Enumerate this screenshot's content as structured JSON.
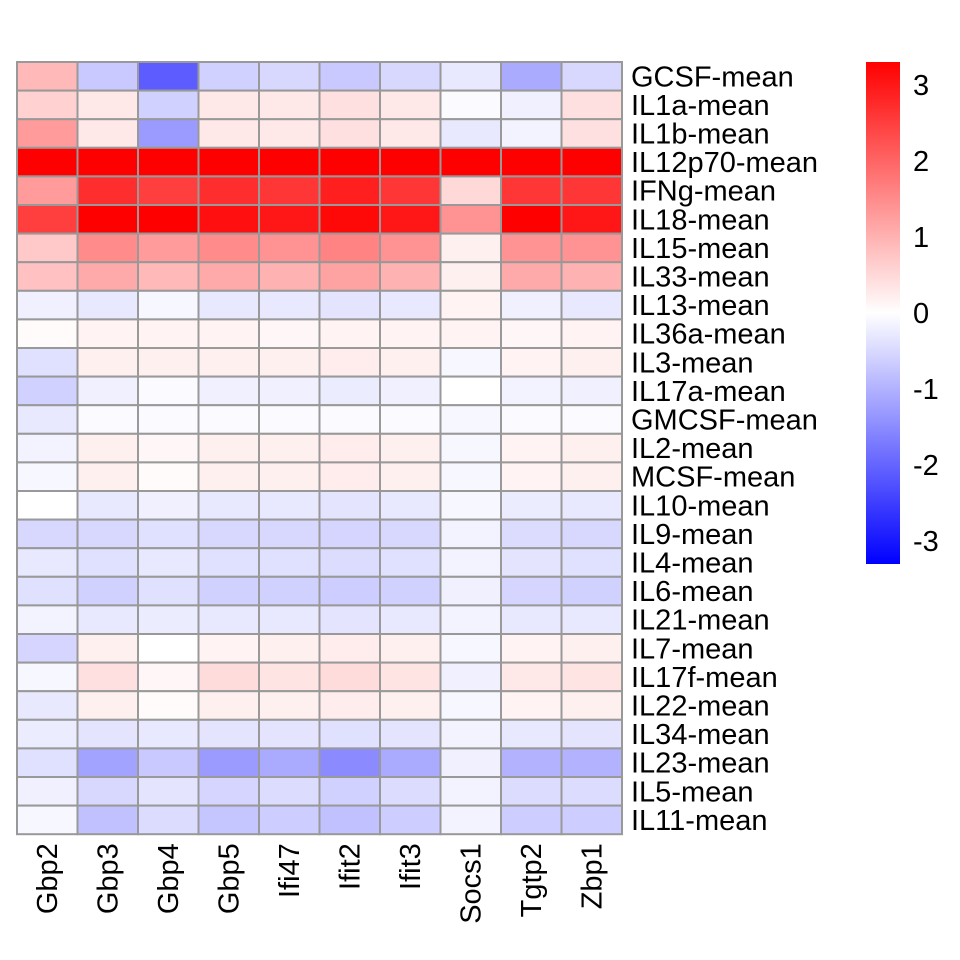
{
  "chart_data": {
    "type": "heatmap",
    "columns": [
      "Gbp2",
      "Gbp3",
      "Gbp4",
      "Gbp5",
      "Ifi47",
      "Ifit2",
      "Ifit3",
      "Socs1",
      "Tgtp2",
      "Zbp1"
    ],
    "rows": [
      "GCSF-mean",
      "IL1a-mean",
      "IL1b-mean",
      "IL12p70-mean",
      "IFNg-mean",
      "IL18-mean",
      "IL15-mean",
      "IL33-mean",
      "IL13-mean",
      "IL36a-mean",
      "IL3-mean",
      "IL17a-mean",
      "GMCSF-mean",
      "IL2-mean",
      "MCSF-mean",
      "IL10-mean",
      "IL9-mean",
      "IL4-mean",
      "IL6-mean",
      "IL21-mean",
      "IL7-mean",
      "IL17f-mean",
      "IL22-mean",
      "IL34-mean",
      "IL23-mean",
      "IL5-mean",
      "IL11-mean"
    ],
    "values": [
      [
        0.9,
        -0.7,
        -2.1,
        -0.6,
        -0.5,
        -0.7,
        -0.5,
        -0.3,
        -1.1,
        -0.5
      ],
      [
        0.6,
        0.3,
        -0.6,
        0.3,
        0.3,
        0.4,
        0.3,
        -0.05,
        -0.2,
        0.4
      ],
      [
        1.3,
        0.3,
        -1.3,
        0.3,
        0.3,
        0.4,
        0.3,
        -0.3,
        -0.15,
        0.4
      ],
      [
        3.3,
        3.3,
        3.3,
        3.3,
        3.3,
        3.3,
        3.3,
        3.3,
        3.3,
        3.3
      ],
      [
        1.3,
        2.7,
        2.5,
        2.7,
        2.6,
        2.9,
        2.6,
        0.5,
        2.6,
        2.6
      ],
      [
        2.5,
        3.3,
        3.3,
        3.1,
        3.0,
        3.2,
        3.0,
        1.4,
        3.3,
        3.0
      ],
      [
        0.7,
        1.5,
        1.3,
        1.5,
        1.4,
        1.6,
        1.4,
        0.2,
        1.4,
        1.4
      ],
      [
        0.8,
        1.1,
        0.9,
        1.1,
        1.0,
        1.2,
        1.0,
        0.2,
        1.1,
        1.0
      ],
      [
        -0.2,
        -0.3,
        -0.1,
        -0.3,
        -0.3,
        -0.35,
        -0.3,
        0.15,
        -0.2,
        -0.3
      ],
      [
        0.05,
        0.15,
        0.15,
        0.15,
        0.1,
        0.15,
        0.15,
        0.15,
        0.1,
        0.15
      ],
      [
        -0.4,
        0.2,
        0.2,
        0.2,
        0.2,
        0.25,
        0.2,
        -0.1,
        0.15,
        0.2
      ],
      [
        -0.6,
        -0.2,
        -0.05,
        -0.2,
        -0.2,
        -0.25,
        -0.2,
        0.0,
        -0.15,
        -0.2
      ],
      [
        -0.3,
        -0.05,
        -0.05,
        -0.05,
        -0.05,
        -0.05,
        -0.05,
        -0.1,
        -0.05,
        -0.05
      ],
      [
        -0.15,
        0.2,
        0.1,
        0.2,
        0.2,
        0.25,
        0.2,
        -0.1,
        0.15,
        0.2
      ],
      [
        -0.1,
        0.2,
        0.05,
        0.2,
        0.2,
        0.25,
        0.2,
        -0.1,
        0.15,
        0.2
      ],
      [
        0.0,
        -0.3,
        -0.2,
        -0.3,
        -0.3,
        -0.35,
        -0.3,
        -0.1,
        -0.25,
        -0.3
      ],
      [
        -0.5,
        -0.5,
        -0.4,
        -0.5,
        -0.5,
        -0.55,
        -0.5,
        -0.15,
        -0.45,
        -0.5
      ],
      [
        -0.3,
        -0.4,
        -0.3,
        -0.4,
        -0.4,
        -0.45,
        -0.4,
        -0.15,
        -0.35,
        -0.4
      ],
      [
        -0.4,
        -0.6,
        -0.4,
        -0.6,
        -0.6,
        -0.65,
        -0.6,
        -0.2,
        -0.55,
        -0.6
      ],
      [
        -0.15,
        -0.3,
        -0.25,
        -0.3,
        -0.3,
        -0.35,
        -0.3,
        -0.15,
        -0.3,
        -0.3
      ],
      [
        -0.55,
        0.2,
        0.0,
        0.15,
        0.2,
        0.25,
        0.2,
        -0.1,
        0.15,
        0.2
      ],
      [
        -0.1,
        0.4,
        0.1,
        0.45,
        0.35,
        0.45,
        0.35,
        -0.2,
        0.3,
        0.35
      ],
      [
        -0.3,
        0.2,
        0.05,
        0.2,
        0.2,
        0.25,
        0.2,
        -0.1,
        0.15,
        0.2
      ],
      [
        -0.25,
        -0.35,
        -0.3,
        -0.35,
        -0.35,
        -0.4,
        -0.35,
        -0.15,
        -0.3,
        -0.35
      ],
      [
        -0.4,
        -1.2,
        -0.7,
        -1.3,
        -1.1,
        -1.5,
        -1.1,
        -0.2,
        -1.0,
        -1.0
      ],
      [
        -0.2,
        -0.5,
        -0.35,
        -0.55,
        -0.45,
        -0.6,
        -0.45,
        -0.15,
        -0.45,
        -0.45
      ],
      [
        -0.1,
        -0.8,
        -0.45,
        -0.75,
        -0.65,
        -0.8,
        -0.65,
        -0.15,
        -0.65,
        -0.65
      ]
    ],
    "color_scale": {
      "min": -3.3,
      "max": 3.3,
      "low_color": "#0000ff",
      "mid_color": "#ffffff",
      "high_color": "#ff0000",
      "ticks": [
        3,
        2,
        1,
        0,
        -1,
        -2,
        -3
      ],
      "tick_labels": [
        "3",
        "2",
        "1",
        "0",
        "-1",
        "-2",
        "-3"
      ]
    },
    "cell_border_color": "#999999",
    "legend_position": "top-right"
  }
}
